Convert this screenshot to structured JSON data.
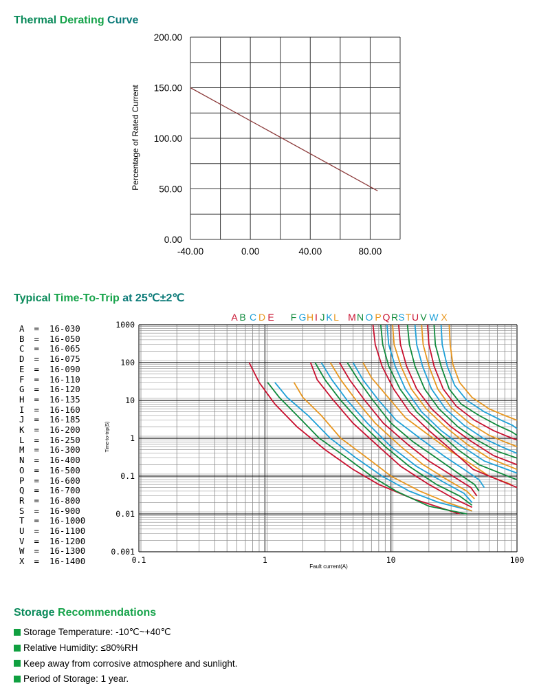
{
  "sections": {
    "derating_title": [
      "Thermal ",
      "Derating ",
      "Curve"
    ],
    "trip_title": [
      "Typical ",
      "Time-To-Trip ",
      "at 25℃±2℃"
    ],
    "storage_title": [
      "Storage ",
      "Recommendations"
    ]
  },
  "chart_data": [
    {
      "type": "line",
      "title": "Thermal Derating Curve",
      "xlabel": "",
      "ylabel": "Percentage of Rated Current",
      "xlim": [
        -40,
        100
      ],
      "ylim": [
        0,
        200
      ],
      "x_ticks": [
        "-40.00",
        "0.00",
        "40.00",
        "80.00"
      ],
      "y_ticks": [
        "0.00",
        "50.00",
        "100.00",
        "150.00",
        "200.00"
      ],
      "grid": true,
      "series": [
        {
          "x": [
            -40,
            85
          ],
          "y": [
            150,
            48
          ],
          "color": "#8b3a3a"
        }
      ]
    },
    {
      "type": "line",
      "title": "Typical Time-To-Trip at 25℃±2℃",
      "xlabel": "Fault current(A)",
      "ylabel": "Time-to-trip(S)",
      "x_scale": "log",
      "y_scale": "log",
      "xlim": [
        0.1,
        100
      ],
      "ylim": [
        0.001,
        1000
      ],
      "x_ticks": [
        "0.1",
        "1",
        "10",
        "100"
      ],
      "y_ticks": [
        "1000",
        "100",
        "10",
        "1",
        "0.1",
        "0.01",
        "0.001"
      ],
      "grid": true,
      "legend_letters": [
        "A",
        "B",
        "C",
        "D",
        "E",
        "F",
        "G",
        "H",
        "I",
        "J",
        "K",
        "L",
        "M",
        "N",
        "O",
        "P",
        "Q",
        "R",
        "S",
        "T",
        "U",
        "V",
        "W",
        "X"
      ],
      "legend_groups": [
        {
          "text": "A B C D E",
          "x_pos": 0.335
        },
        {
          "text": "F G H I J K L",
          "x_pos": 0.43
        },
        {
          "text": "M N O P Q R S T U V W X",
          "x_pos": 0.53
        }
      ],
      "series_colors": [
        "#c8102e",
        "#0f8a3c",
        "#1ea0d8",
        "#e8961e"
      ],
      "series": [
        {
          "name": "A",
          "x": [
            0.75,
            0.9,
            1.2,
            1.8,
            3,
            5,
            8,
            15,
            35
          ],
          "y": [
            100,
            30,
            8,
            2,
            0.5,
            0.15,
            0.06,
            0.025,
            0.01
          ]
        },
        {
          "name": "B",
          "x": [
            1.05,
            1.3,
            1.8,
            2.7,
            4.5,
            7,
            11,
            20,
            40
          ],
          "y": [
            30,
            12,
            4,
            1,
            0.3,
            0.1,
            0.04,
            0.016,
            0.01
          ]
        },
        {
          "name": "C",
          "x": [
            1.2,
            1.5,
            2.2,
            3.3,
            5.3,
            8.5,
            14,
            24,
            44
          ],
          "y": [
            30,
            12,
            4,
            1,
            0.3,
            0.1,
            0.04,
            0.02,
            0.012
          ]
        },
        {
          "name": "D",
          "x": [
            1.7,
            2,
            2.8,
            4,
            6.5,
            10,
            17,
            28,
            44
          ],
          "y": [
            30,
            12,
            4,
            1,
            0.3,
            0.1,
            0.04,
            0.02,
            0.012
          ]
        },
        {
          "name": "E",
          "x": [
            2.3,
            2.6,
            3.5,
            5,
            8,
            12,
            20,
            32,
            44
          ],
          "y": [
            100,
            35,
            10,
            2.5,
            0.6,
            0.18,
            0.06,
            0.025,
            0.015
          ]
        },
        {
          "name": "F",
          "x": [
            2.5,
            3,
            4,
            5.8,
            9,
            14,
            23,
            35,
            44
          ],
          "y": [
            100,
            35,
            10,
            2.5,
            0.6,
            0.18,
            0.06,
            0.03,
            0.017
          ]
        },
        {
          "name": "G",
          "x": [
            2.8,
            3.4,
            4.5,
            6.5,
            10,
            16,
            26,
            38,
            44
          ],
          "y": [
            100,
            35,
            10,
            2.5,
            0.6,
            0.18,
            0.07,
            0.035,
            0.02
          ]
        },
        {
          "name": "H",
          "x": [
            3.3,
            4,
            5.3,
            7.5,
            12,
            18,
            28,
            40,
            46
          ],
          "y": [
            100,
            35,
            10,
            2.5,
            0.6,
            0.2,
            0.08,
            0.04,
            0.025
          ]
        },
        {
          "name": "I",
          "x": [
            3.9,
            4.7,
            6.2,
            8.7,
            13.5,
            20,
            31,
            43,
            48
          ],
          "y": [
            100,
            35,
            10,
            2.5,
            0.7,
            0.25,
            0.1,
            0.05,
            0.03
          ]
        },
        {
          "name": "J",
          "x": [
            4.5,
            5.5,
            7.2,
            10,
            15,
            23,
            34,
            46,
            50
          ],
          "y": [
            100,
            35,
            10,
            2.5,
            0.8,
            0.3,
            0.12,
            0.06,
            0.04
          ]
        },
        {
          "name": "K",
          "x": [
            5,
            6,
            8,
            11,
            17,
            26,
            38,
            50,
            55
          ],
          "y": [
            100,
            35,
            10,
            3,
            1,
            0.35,
            0.15,
            0.08,
            0.05
          ]
        },
        {
          "name": "L",
          "x": [
            6,
            7,
            9.5,
            13,
            20,
            30,
            44,
            60,
            90
          ],
          "y": [
            100,
            40,
            12,
            3.5,
            1.2,
            0.45,
            0.2,
            0.1,
            0.06
          ]
        },
        {
          "name": "M",
          "x": [
            7.2,
            7.5,
            8.5,
            10.5,
            14,
            20,
            30,
            45,
            100
          ],
          "y": [
            1000,
            300,
            80,
            20,
            5,
            1.6,
            0.5,
            0.15,
            0.05
          ]
        },
        {
          "name": "N",
          "x": [
            8.3,
            8.6,
            9.6,
            11.8,
            16,
            23,
            34,
            50,
            100
          ],
          "y": [
            1000,
            300,
            80,
            20,
            5,
            1.6,
            0.5,
            0.2,
            0.08
          ]
        },
        {
          "name": "O",
          "x": [
            9.3,
            9.6,
            10.8,
            13,
            17.5,
            25,
            37,
            55,
            100
          ],
          "y": [
            1000,
            300,
            80,
            20,
            5,
            1.6,
            0.6,
            0.25,
            0.12
          ]
        },
        {
          "name": "P",
          "x": [
            10.3,
            10.6,
            12,
            14.5,
            19,
            27,
            40,
            60,
            100
          ],
          "y": [
            1000,
            300,
            80,
            20,
            6,
            2,
            0.7,
            0.3,
            0.15
          ]
        },
        {
          "name": "Q",
          "x": [
            11.5,
            11.9,
            13.3,
            16,
            21,
            30,
            44,
            65,
            100
          ],
          "y": [
            1000,
            300,
            80,
            20,
            6,
            2,
            0.8,
            0.35,
            0.2
          ]
        },
        {
          "name": "R",
          "x": [
            13.5,
            14,
            15.5,
            18.5,
            24,
            34,
            48,
            70,
            100
          ],
          "y": [
            1000,
            300,
            80,
            20,
            6,
            2,
            0.9,
            0.45,
            0.3
          ]
        },
        {
          "name": "S",
          "x": [
            15.5,
            16,
            17.8,
            21,
            27,
            38,
            54,
            75,
            100
          ],
          "y": [
            1000,
            300,
            80,
            20,
            6,
            2.2,
            1,
            0.6,
            0.4
          ]
        },
        {
          "name": "T",
          "x": [
            17.5,
            18,
            20,
            23.5,
            30,
            42,
            60,
            80,
            100
          ],
          "y": [
            1000,
            300,
            80,
            20,
            6.5,
            2.5,
            1.2,
            0.8,
            0.6
          ]
        },
        {
          "name": "U",
          "x": [
            19.5,
            20,
            22,
            26,
            33,
            46,
            65,
            85,
            100
          ],
          "y": [
            1000,
            300,
            80,
            20,
            7,
            3,
            1.6,
            1.1,
            0.9
          ]
        },
        {
          "name": "V",
          "x": [
            22,
            22.5,
            25,
            29,
            36,
            50,
            70,
            90,
            100
          ],
          "y": [
            1000,
            300,
            80,
            20,
            8,
            4,
            2.2,
            1.5,
            1.2
          ]
        },
        {
          "name": "W",
          "x": [
            25,
            25.5,
            28,
            32,
            40,
            55,
            75,
            92,
            100
          ],
          "y": [
            1000,
            300,
            80,
            25,
            10,
            5,
            3,
            2.2,
            1.8
          ]
        },
        {
          "name": "X",
          "x": [
            29,
            29.5,
            31,
            35,
            44,
            60,
            80,
            100
          ],
          "y": [
            1000,
            300,
            90,
            30,
            12,
            6,
            4,
            3
          ]
        }
      ],
      "legend_table": [
        [
          "A",
          "16-030"
        ],
        [
          "B",
          "16-050"
        ],
        [
          "C",
          "16-065"
        ],
        [
          "D",
          "16-075"
        ],
        [
          "E",
          "16-090"
        ],
        [
          "F",
          "16-110"
        ],
        [
          "G",
          "16-120"
        ],
        [
          "H",
          "16-135"
        ],
        [
          "I",
          "16-160"
        ],
        [
          "J",
          "16-185"
        ],
        [
          "K",
          "16-200"
        ],
        [
          "L",
          "16-250"
        ],
        [
          "M",
          "16-300"
        ],
        [
          "N",
          "16-400"
        ],
        [
          "O",
          "16-500"
        ],
        [
          "P",
          "16-600"
        ],
        [
          "Q",
          "16-700"
        ],
        [
          "R",
          "16-800"
        ],
        [
          "S",
          "16-900"
        ],
        [
          "T",
          "16-1000"
        ],
        [
          "U",
          "16-1100"
        ],
        [
          "V",
          "16-1200"
        ],
        [
          "W",
          "16-1300"
        ],
        [
          "X",
          "16-1400"
        ]
      ]
    }
  ],
  "storage": {
    "items": [
      "Storage Temperature: -10℃~+40℃",
      "Relative Humidity: ≤80%RH",
      "Keep away from corrosive atmosphere and sunlight.",
      "Period of Storage: 1 year."
    ],
    "bullet_color": "#10a040"
  }
}
